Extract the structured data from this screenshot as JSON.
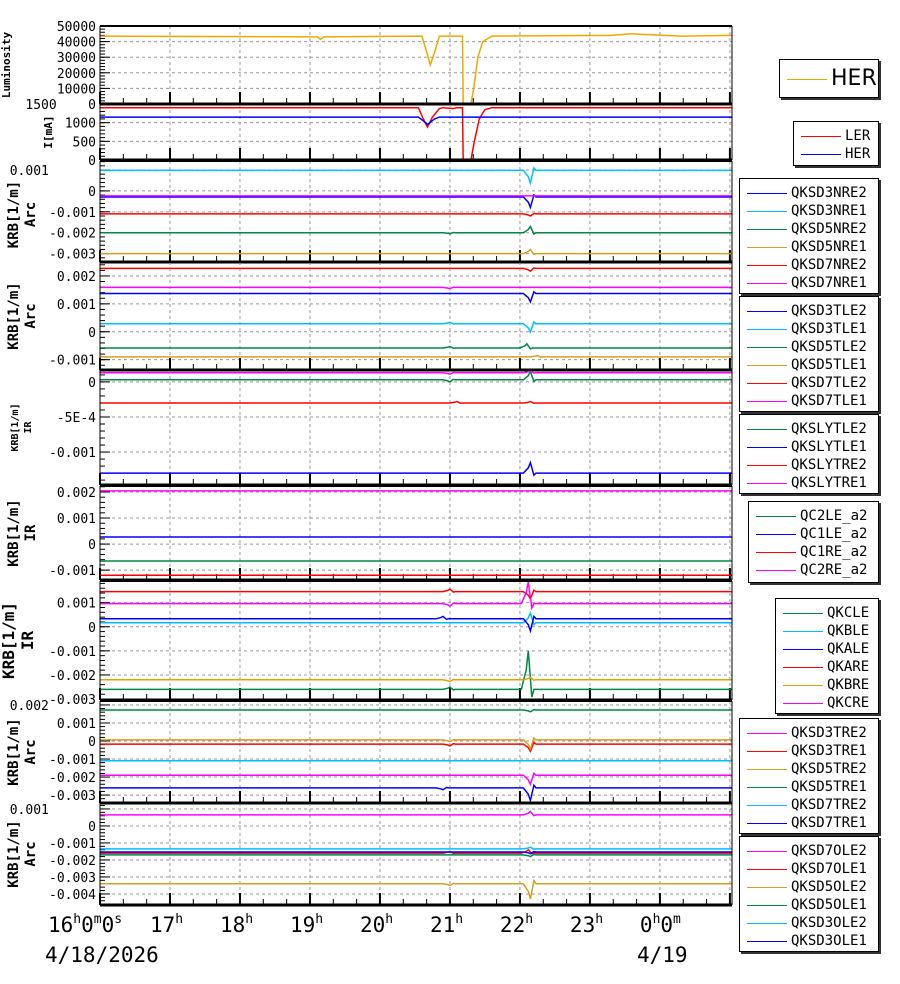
{
  "chart_data": {
    "type": "line",
    "xlabel_date_left": "4/18/2026",
    "xlabel_date_right": "4/19",
    "xlim": [
      16,
      25.03
    ],
    "x_ticks": [
      {
        "t": 16,
        "parts": [
          "16",
          "h",
          "0",
          "m",
          "0",
          "s"
        ]
      },
      {
        "t": 17,
        "parts": [
          "17",
          "h"
        ]
      },
      {
        "t": 18,
        "parts": [
          "18",
          "h"
        ]
      },
      {
        "t": 19,
        "parts": [
          "19",
          "h"
        ]
      },
      {
        "t": 20,
        "parts": [
          "20",
          "h"
        ]
      },
      {
        "t": 21,
        "parts": [
          "21",
          "h"
        ]
      },
      {
        "t": 22,
        "parts": [
          "22",
          "h"
        ]
      },
      {
        "t": 23,
        "parts": [
          "23",
          "h"
        ]
      },
      {
        "t": 24,
        "parts": [
          "0",
          "h",
          "0",
          "m"
        ]
      }
    ],
    "panels": [
      {
        "ylabel": [
          "Luminosity"
        ],
        "ylim": [
          0,
          50000
        ],
        "yticks": [
          0,
          10000,
          20000,
          30000,
          40000,
          50000
        ],
        "tick_labels": [
          "0",
          "10000",
          "20000",
          "30000",
          "40000",
          "50000"
        ],
        "series": [
          {
            "name": "HER",
            "color": "#f0a800",
            "points": [
              [
                16,
                43500
              ],
              [
                19.1,
                43000
              ],
              [
                19.15,
                41500
              ],
              [
                19.2,
                43000
              ],
              [
                20.6,
                43500
              ],
              [
                20.67,
                33000
              ],
              [
                20.72,
                25000
              ],
              [
                20.78,
                33000
              ],
              [
                20.85,
                43500
              ],
              [
                21.18,
                43500
              ],
              [
                21.19,
                0
              ],
              [
                21.3,
                0
              ],
              [
                21.34,
                10000
              ],
              [
                21.4,
                30000
              ],
              [
                21.47,
                40000
              ],
              [
                21.6,
                43500
              ],
              [
                23.3,
                44000
              ],
              [
                23.6,
                45000
              ],
              [
                24.3,
                43500
              ],
              [
                25.03,
                44000
              ]
            ]
          }
        ]
      },
      {
        "ylabel": [
          "I[mA]"
        ],
        "ylim": [
          0,
          1500
        ],
        "yticks": [
          0,
          500,
          1000,
          1500
        ],
        "tick_labels": [
          "0",
          "500",
          "1000",
          "1500"
        ],
        "series": [
          {
            "name": "LER",
            "color": "#ff0000",
            "points": [
              [
                16,
                1400
              ],
              [
                20.55,
                1400
              ],
              [
                20.62,
                1100
              ],
              [
                20.68,
                880
              ],
              [
                20.75,
                1150
              ],
              [
                20.85,
                1380
              ],
              [
                20.9,
                1400
              ],
              [
                21.05,
                1380
              ],
              [
                21.1,
                1400
              ],
              [
                21.18,
                1400
              ],
              [
                21.19,
                0
              ],
              [
                21.3,
                0
              ],
              [
                21.35,
                500
              ],
              [
                21.42,
                1100
              ],
              [
                21.5,
                1350
              ],
              [
                21.6,
                1400
              ],
              [
                25.03,
                1400
              ]
            ]
          },
          {
            "name": "HER",
            "color": "#0000ff",
            "points": [
              [
                16,
                1150
              ],
              [
                20.55,
                1150
              ],
              [
                20.62,
                1050
              ],
              [
                20.68,
                950
              ],
              [
                20.78,
                1100
              ],
              [
                20.85,
                1150
              ],
              [
                25.03,
                1150
              ]
            ]
          }
        ]
      },
      {
        "ylabel": [
          "KRB[1/m]",
          "Arc"
        ],
        "ylim": [
          -0.0034,
          0.00143
        ],
        "yticks": [
          -0.003,
          -0.002,
          -0.001,
          0,
          0.001
        ],
        "tick_labels": [
          "-0.003",
          "-0.002",
          "-0.001",
          "0",
          "0.001"
        ],
        "series": [
          {
            "name": "QKSD3NRE2",
            "color": "#0000ff",
            "base": -0.00029,
            "events": [
              [
                22.15,
                -0.0005
              ]
            ]
          },
          {
            "name": "QKSD3NRE1",
            "color": "#00bfff",
            "base": 0.00098,
            "events": [
              [
                22.15,
                -0.0006
              ]
            ]
          },
          {
            "name": "QKSD5NRE2",
            "color": "#008844",
            "base": -0.002,
            "events": [
              [
                21.0,
                -5e-05
              ],
              [
                22.15,
                0.0003
              ]
            ]
          },
          {
            "name": "QKSD5NRE1",
            "color": "#d4a020",
            "base": -0.003,
            "events": [
              [
                22.15,
                0.0002
              ]
            ]
          },
          {
            "name": "QKSD7NRE2",
            "color": "#ff0000",
            "base": -0.0011,
            "events": [
              [
                22.15,
                -0.0001
              ]
            ]
          },
          {
            "name": "QKSD7NRE1",
            "color": "#ff00ff",
            "base": -0.00024,
            "events": []
          }
        ]
      },
      {
        "ylabel": [
          "KRB[1/m]",
          "Arc"
        ],
        "ylim": [
          -0.00137,
          0.0025
        ],
        "yticks": [
          -0.001,
          0,
          0.001,
          0.002
        ],
        "tick_labels": [
          "-0.001",
          "0",
          "0.001",
          "0.002"
        ],
        "series": [
          {
            "name": "QKSD3TLE2",
            "color": "#0000ff",
            "base": 0.00137,
            "events": [
              [
                22.15,
                -0.0003
              ]
            ]
          },
          {
            "name": "QKSD3TLE1",
            "color": "#00bfff",
            "base": 0.00029,
            "events": [
              [
                21.0,
                5e-05
              ],
              [
                22.15,
                -0.0003
              ]
            ]
          },
          {
            "name": "QKSD5TLE2",
            "color": "#008844",
            "base": -0.00058,
            "events": [
              [
                21.0,
                5e-05
              ],
              [
                22.1,
                0.00015
              ]
            ]
          },
          {
            "name": "QKSD5TLE1",
            "color": "#d4a020",
            "base": -0.0009,
            "events": [
              [
                22.25,
                5e-05
              ]
            ]
          },
          {
            "name": "QKSD7TLE2",
            "color": "#ff0000",
            "base": 0.00227,
            "events": [
              [
                22.15,
                -0.0001
              ]
            ]
          },
          {
            "name": "QKSD7TLE1",
            "color": "#ff00ff",
            "base": 0.00159,
            "events": [
              [
                21.0,
                -5e-05
              ]
            ]
          }
        ]
      },
      {
        "ylabel": [
          "KRB[1/m]",
          "IR"
        ],
        "small": true,
        "ylim": [
          -0.00147,
          0.00017
        ],
        "yticks": [
          -0.001,
          -0.0005,
          0
        ],
        "tick_labels": [
          "-0.001",
          "-5E-4",
          "0"
        ],
        "series": [
          {
            "name": "QKSLYTLE2",
            "color": "#008844",
            "base": 3e-05,
            "events": [
              [
                21.0,
                -3e-05
              ],
              [
                22.15,
                0.00012
              ]
            ]
          },
          {
            "name": "QKSLYTLE1",
            "color": "#0000ff",
            "base": -0.0013,
            "events": [
              [
                22.15,
                0.00015
              ]
            ]
          },
          {
            "name": "QKSLYTRE2",
            "color": "#ff0000",
            "base": -0.0003,
            "events": [
              [
                21.1,
                2e-05
              ],
              [
                22.15,
                2e-05
              ]
            ]
          },
          {
            "name": "QKSLYTRE1",
            "color": "#ff00ff",
            "base": 0.00013,
            "events": [
              [
                21.0,
                -2e-05
              ],
              [
                22.15,
                3e-05
              ]
            ]
          }
        ]
      },
      {
        "ylabel": [
          "KRB[1/m]",
          "IR"
        ],
        "ylim": [
          -0.00138,
          0.00223
        ],
        "yticks": [
          -0.001,
          0,
          0.001,
          0.002
        ],
        "tick_labels": [
          "-0.001",
          "0",
          "0.001",
          "0.002"
        ],
        "series": [
          {
            "name": "QC2LE_a2",
            "color": "#008844",
            "base": -0.00065,
            "events": []
          },
          {
            "name": "QC1LE_a2",
            "color": "#0000ff",
            "base": 0.00027,
            "events": []
          },
          {
            "name": "QC1RE_a2",
            "color": "#ff0000",
            "base": -0.0012,
            "events": []
          },
          {
            "name": "QC2RE_a2",
            "color": "#ff00ff",
            "base": 0.00204,
            "events": []
          }
        ]
      },
      {
        "ylabel": [
          "KRB[1/m]",
          "IR"
        ],
        "large": true,
        "ylim": [
          -0.00304,
          0.0019
        ],
        "yticks": [
          -0.003,
          -0.002,
          -0.001,
          0,
          0.001
        ],
        "tick_labels": [
          "-0.003",
          "-0.002",
          "-0.001",
          "0",
          "0.001"
        ],
        "series": [
          {
            "name": "QKCLE",
            "color": "#008844",
            "base": -0.0026,
            "events": [
              [
                21.0,
                0.0001
              ],
              [
                22.12,
                0.0016
              ]
            ]
          },
          {
            "name": "QKBLE",
            "color": "#00bfff",
            "base": 0.00017,
            "events": [
              [
                22.15,
                0.0004
              ]
            ]
          },
          {
            "name": "QKALE",
            "color": "#0000ff",
            "base": 0.00033,
            "events": [
              [
                20.9,
                0.0001
              ],
              [
                22.15,
                -0.0005
              ]
            ]
          },
          {
            "name": "QKARE",
            "color": "#ff0000",
            "base": 0.00146,
            "events": [
              [
                21.0,
                0.0001
              ],
              [
                22.15,
                -0.0003
              ]
            ]
          },
          {
            "name": "QKBRE",
            "color": "#e8a000",
            "base": -0.0022,
            "events": [
              [
                21.0,
                -8e-05
              ],
              [
                22.15,
                0.0001
              ]
            ]
          },
          {
            "name": "QKCRE",
            "color": "#ff00ff",
            "base": 0.00096,
            "events": [
              [
                21.0,
                -0.0001
              ],
              [
                22.12,
                0.0009
              ]
            ]
          }
        ]
      },
      {
        "ylabel": [
          "KRB[1/m]",
          "Arc"
        ],
        "ylim": [
          -0.00344,
          0.00222
        ],
        "yticks": [
          -0.003,
          -0.002,
          -0.001,
          0,
          0.001,
          0.002
        ],
        "tick_labels": [
          "-0.003",
          "-0.002",
          "-0.001",
          "0",
          "0.001",
          "0.002"
        ],
        "series": [
          {
            "name": "QKSD3TRE2",
            "color": "#ff00ff",
            "base": -0.0019,
            "events": [
              [
                22.15,
                -0.0005
              ]
            ]
          },
          {
            "name": "QKSD3TRE1",
            "color": "#ff0000",
            "base": -0.00017,
            "events": [
              [
                21.0,
                -0.0001
              ],
              [
                22.15,
                -0.0004
              ]
            ]
          },
          {
            "name": "QKSD5TRE2",
            "color": "#d4a020",
            "base": 6e-05,
            "events": [
              [
                21.0,
                -0.0001
              ],
              [
                22.15,
                -0.0005
              ]
            ]
          },
          {
            "name": "QKSD5TRE1",
            "color": "#008844",
            "base": 0.00172,
            "events": [
              [
                22.15,
                -0.0001
              ]
            ]
          },
          {
            "name": "QKSD7TRE2",
            "color": "#00bfff",
            "base": -0.0011,
            "events": []
          },
          {
            "name": "QKSD7TRE1",
            "color": "#0000ff",
            "base": -0.0026,
            "events": [
              [
                20.9,
                -0.0001
              ],
              [
                22.15,
                -0.0007
              ]
            ]
          }
        ]
      },
      {
        "ylabel": [
          "KRB[1/m]",
          "Arc"
        ],
        "ylim": [
          -0.00465,
          0.00135
        ],
        "yticks": [
          -0.004,
          -0.003,
          -0.002,
          -0.001,
          0,
          0.001
        ],
        "tick_labels": [
          "-0.004",
          "-0.003",
          "-0.002",
          "-0.001",
          "0",
          "0.001"
        ],
        "series": [
          {
            "name": "QKSD7OLE2",
            "color": "#ff00ff",
            "base": 0.00065,
            "events": [
              [
                22.15,
                0.0002
              ]
            ]
          },
          {
            "name": "QKSD7OLE1",
            "color": "#ff0000",
            "base": -0.0016,
            "events": [
              [
                21.0,
                0.0001
              ],
              [
                22.12,
                0.0002
              ]
            ]
          },
          {
            "name": "QKSD5OLE2",
            "color": "#d4a020",
            "base": -0.0034,
            "events": [
              [
                21.0,
                -0.0001
              ],
              [
                22.15,
                -0.0009
              ]
            ]
          },
          {
            "name": "QKSD5OLE1",
            "color": "#008844",
            "base": -0.0017,
            "events": [
              [
                22.15,
                -0.0001
              ]
            ]
          },
          {
            "name": "QKSD3OLE2",
            "color": "#00bfff",
            "base": -0.00135,
            "events": [
              [
                22.15,
                0.0001
              ]
            ]
          },
          {
            "name": "QKSD3OLE1",
            "color": "#0000ff",
            "base": -0.00153,
            "events": [
              [
                22.15,
                -0.0001
              ]
            ]
          }
        ]
      }
    ]
  }
}
